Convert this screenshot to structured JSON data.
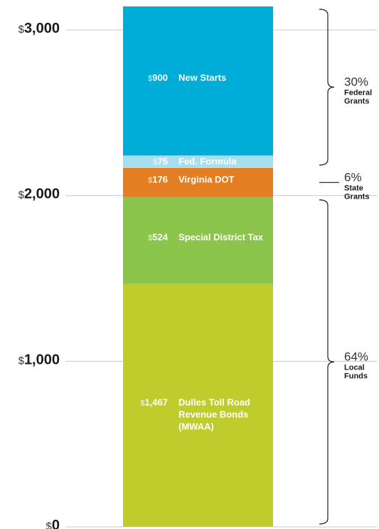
{
  "chart_data": {
    "type": "bar",
    "stacked": true,
    "ylim": [
      0,
      3142
    ],
    "ticks": [
      {
        "value": 0,
        "currency": "$",
        "label": "0"
      },
      {
        "value": 1000,
        "currency": "$",
        "label": "1,000"
      },
      {
        "value": 2000,
        "currency": "$",
        "label": "2,000"
      },
      {
        "value": 3000,
        "currency": "$",
        "label": "3,000"
      }
    ],
    "segments": [
      {
        "value": 1467,
        "currency": "$",
        "value_label": "1,467",
        "label_lines": [
          "Dulles Toll Road",
          "Revenue Bonds",
          "(MWAA)"
        ],
        "color": "#bfcc2c",
        "text_color": "#ffffff"
      },
      {
        "value": 524,
        "currency": "$",
        "value_label": "524",
        "label_lines": [
          "Special District Tax"
        ],
        "color": "#8bc44a",
        "text_color": "#ffffff"
      },
      {
        "value": 176,
        "currency": "$",
        "value_label": "176",
        "label_lines": [
          "Virginia DOT"
        ],
        "color": "#e37e22",
        "text_color": "#ffffff"
      },
      {
        "value": 75,
        "currency": "$",
        "value_label": "75",
        "label_lines": [
          "Fed. Formula"
        ],
        "color": "#a8dff0",
        "text_color": "#ffffff"
      },
      {
        "value": 900,
        "currency": "$",
        "value_label": "900",
        "label_lines": [
          "New Starts"
        ],
        "color": "#00acd8",
        "text_color": "#ffffff"
      }
    ],
    "groups": [
      {
        "percent": "30%",
        "name_lines": [
          "Federal",
          "Grants"
        ],
        "from": 2167,
        "to": 3142
      },
      {
        "percent": "6%",
        "name_lines": [
          "State",
          "Grants"
        ],
        "from": 1991,
        "to": 2167
      },
      {
        "percent": "64%",
        "name_lines": [
          "Local",
          "Funds"
        ],
        "from": 0,
        "to": 1991
      }
    ]
  }
}
